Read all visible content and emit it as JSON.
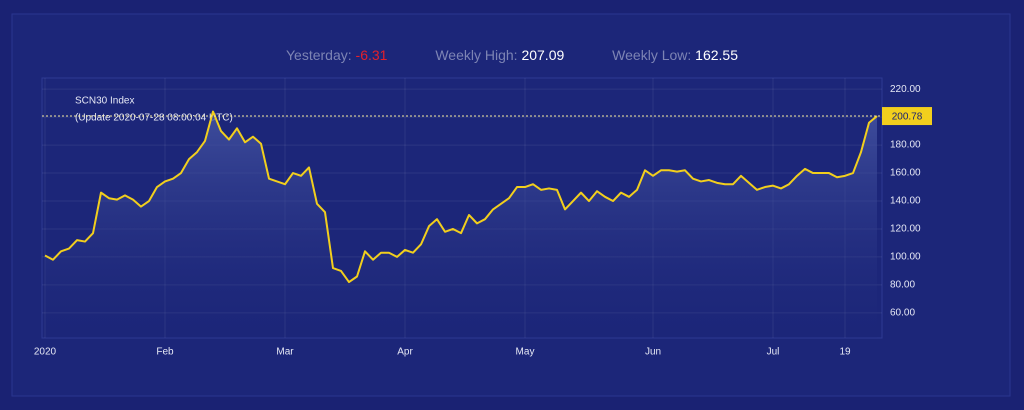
{
  "stats": {
    "yesterday_label": "Yesterday:",
    "yesterday": -6.31,
    "high_label": "Weekly High:",
    "high": 207.09,
    "low_label": "Weekly Low:",
    "low": 162.55
  },
  "chart_data": {
    "type": "area",
    "title": "SCN30 Index",
    "subtitle": "(Update 2020-07-28 08:00:04 UTC)",
    "categories": [
      "2020",
      null,
      null,
      null,
      null,
      null,
      null,
      null,
      null,
      null,
      null,
      null,
      null,
      null,
      null,
      "Feb",
      null,
      null,
      null,
      null,
      null,
      null,
      null,
      null,
      null,
      null,
      null,
      null,
      null,
      null,
      "Mar",
      null,
      null,
      null,
      null,
      null,
      null,
      null,
      null,
      null,
      null,
      null,
      null,
      null,
      null,
      "Apr",
      null,
      null,
      null,
      null,
      null,
      null,
      null,
      null,
      null,
      null,
      null,
      null,
      null,
      null,
      "May",
      null,
      null,
      null,
      null,
      null,
      null,
      null,
      null,
      null,
      null,
      null,
      null,
      null,
      null,
      null,
      "Jun",
      null,
      null,
      null,
      null,
      null,
      null,
      null,
      null,
      null,
      null,
      null,
      null,
      null,
      null,
      "Jul",
      null,
      null,
      null,
      null,
      null,
      null,
      null,
      null,
      "19",
      null,
      null,
      null,
      null
    ],
    "series": [
      {
        "name": "SCN30 Index",
        "color": "#f2cf1d",
        "values": [
          101,
          98,
          104,
          106,
          112,
          111,
          117,
          146,
          142,
          141,
          144,
          141,
          136,
          140,
          150,
          154,
          156,
          160,
          170,
          175,
          183,
          204,
          190,
          184,
          192,
          182,
          186,
          181,
          156,
          154,
          152,
          160,
          158,
          164,
          138,
          132,
          92,
          90,
          82,
          86,
          104,
          98,
          103,
          103,
          100,
          105,
          103,
          109,
          122,
          127,
          118,
          120,
          117,
          130,
          124,
          127,
          134,
          138,
          142,
          150,
          150,
          152,
          148,
          149,
          148,
          134,
          140,
          146,
          140,
          147,
          143,
          140,
          146,
          143,
          148,
          162,
          158,
          162,
          162,
          161,
          162,
          156,
          154,
          155,
          153,
          152,
          152,
          158,
          153,
          148,
          150,
          151,
          149,
          152,
          158,
          163,
          160,
          160,
          160,
          157,
          158,
          160,
          175,
          196,
          200.78
        ]
      }
    ],
    "ylim": [
      42,
      228
    ],
    "yticks": [
      {
        "value": 60,
        "label": "60.00"
      },
      {
        "value": 80,
        "label": "80.00"
      },
      {
        "value": 100,
        "label": "100.00"
      },
      {
        "value": 120,
        "label": "120.00"
      },
      {
        "value": 140,
        "label": "140.00"
      },
      {
        "value": 160,
        "label": "160.00"
      },
      {
        "value": 180,
        "label": "180.00"
      },
      {
        "value": 200,
        "label": "200.00"
      },
      {
        "value": 220,
        "label": "220.00"
      }
    ],
    "grid": true
  }
}
